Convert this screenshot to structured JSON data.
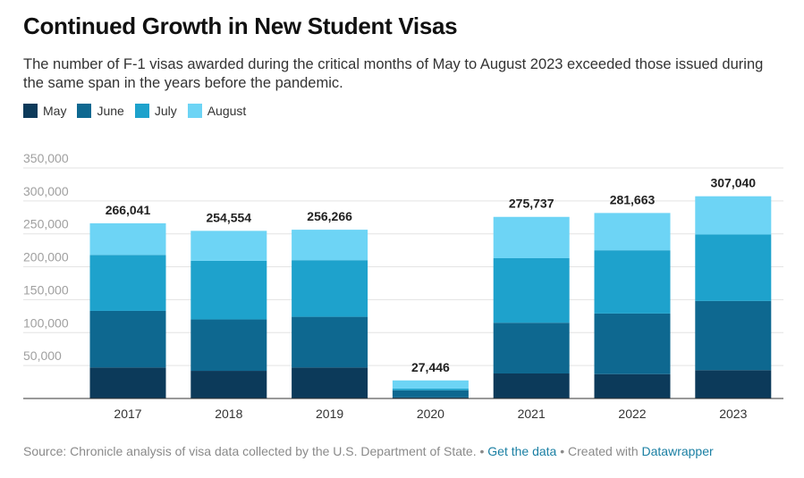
{
  "header": {
    "title": "Continued Growth in New Student Visas",
    "subtitle": "The number of F-1 visas awarded during the critical months of May to August 2023 exceeded those issued during the same span in the years before the pandemic."
  },
  "legend": [
    {
      "label": "May",
      "color": "#0c3a5a"
    },
    {
      "label": "June",
      "color": "#0e6890"
    },
    {
      "label": "July",
      "color": "#1ea2cc"
    },
    {
      "label": "August",
      "color": "#6dd4f5"
    }
  ],
  "footer": {
    "source_text": "Source: Chronicle analysis of visa data collected by the U.S. Department of State. •",
    "get_data_link": "Get the data",
    "created_text": "• Created with",
    "datawrapper_link": "Datawrapper"
  },
  "chart_data": {
    "type": "bar",
    "stacked": true,
    "categories": [
      "2017",
      "2018",
      "2019",
      "2020",
      "2021",
      "2022",
      "2023"
    ],
    "series": [
      {
        "name": "May",
        "color": "#0c3a5a",
        "values": [
          47000,
          42000,
          47000,
          1500,
          38000,
          37000,
          43000
        ]
      },
      {
        "name": "June",
        "color": "#0e6890",
        "values": [
          86000,
          78000,
          77000,
          11000,
          77000,
          92000,
          105000
        ]
      },
      {
        "name": "July",
        "color": "#1ea2cc",
        "values": [
          85000,
          89000,
          86000,
          2500,
          98000,
          96000,
          101000
        ]
      },
      {
        "name": "August",
        "color": "#6dd4f5",
        "values": [
          48041,
          45554,
          46266,
          12446,
          62737,
          56663,
          58040
        ]
      }
    ],
    "totals": [
      "266,041",
      "254,554",
      "256,266",
      "27,446",
      "275,737",
      "281,663",
      "307,040"
    ],
    "total_values": [
      266041,
      254554,
      256266,
      27446,
      275737,
      281663,
      307040
    ],
    "yticks": [
      50000,
      100000,
      150000,
      200000,
      250000,
      300000,
      350000
    ],
    "ytick_labels": [
      "50,000",
      "100,000",
      "150,000",
      "200,000",
      "250,000",
      "300,000",
      "350,000"
    ],
    "ylim": [
      0,
      350000
    ],
    "grid": true,
    "legend_position": "top-left"
  }
}
